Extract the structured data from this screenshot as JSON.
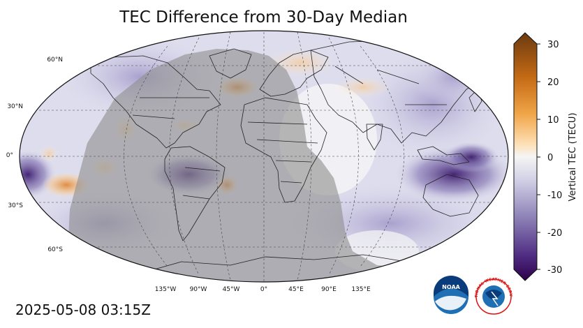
{
  "title": "TEC Difference from 30-Day Median",
  "timestamp": "2025-05-08 03:15Z",
  "lat_labels": [
    "60°N",
    "30°N",
    "0°",
    "30°S",
    "60°S"
  ],
  "lon_labels": [
    "135°W",
    "90°W",
    "45°W",
    "0°",
    "45°E",
    "90°E",
    "135°E"
  ],
  "colorbar": {
    "label": "Vertical TEC (TECU)",
    "ticks": [
      "30",
      "20",
      "10",
      "0",
      "-10",
      "-20",
      "-30"
    ],
    "range": [
      -30,
      30
    ]
  },
  "logos": {
    "noaa": "NOAA",
    "nws": "NATIONAL WEATHER SERVICE"
  },
  "colors": {
    "night_shade": "#9a9a9a",
    "positive": "#b35806",
    "negative": "#2d004b"
  }
}
